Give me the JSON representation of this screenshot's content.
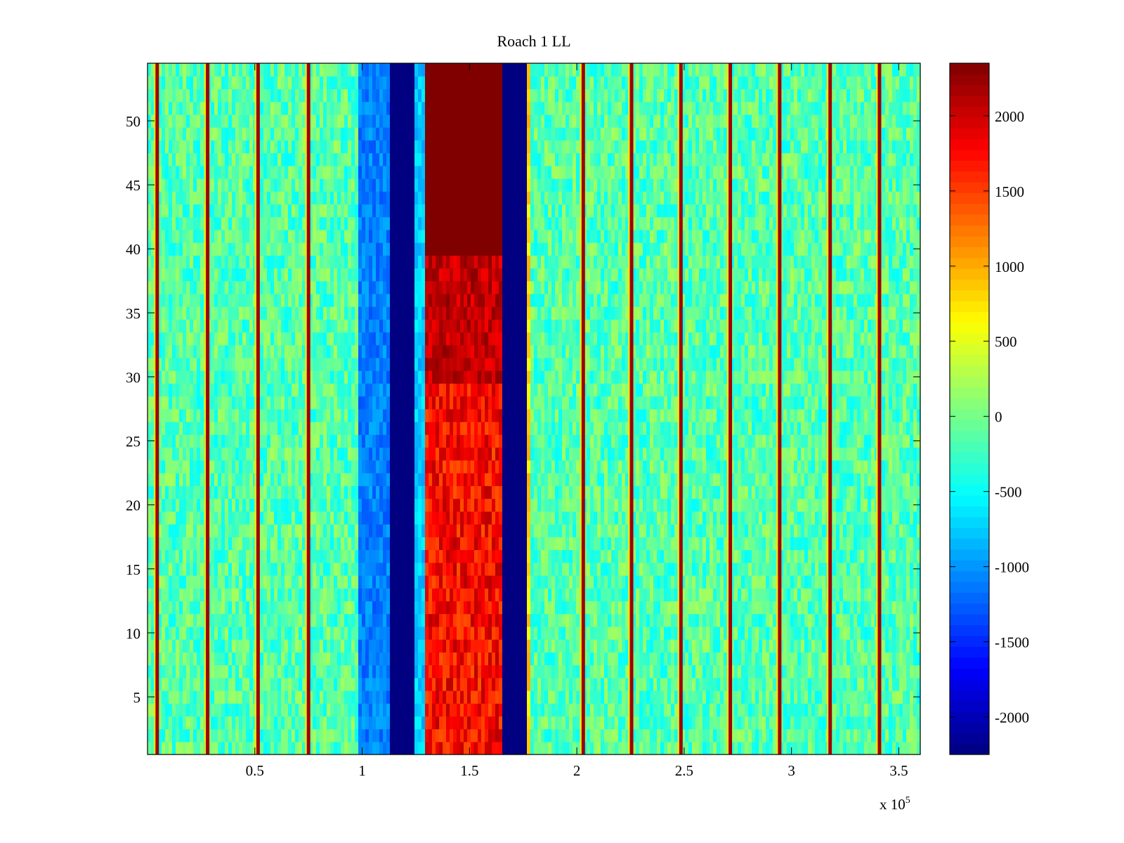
{
  "chart_data": {
    "type": "heatmap",
    "title": "Roach 1 LL",
    "xlabel": "",
    "ylabel": "",
    "x_exponent_label": "x 10",
    "x_exponent_power": "5",
    "xlim": [
      0,
      3.6
    ],
    "ylim": [
      0.5,
      54.5
    ],
    "x_ticks": [
      0.5,
      1,
      1.5,
      2,
      2.5,
      3,
      3.5
    ],
    "x_tick_labels": [
      "0.5",
      "1",
      "1.5",
      "2",
      "2.5",
      "3",
      "3.5"
    ],
    "y_ticks": [
      5,
      10,
      15,
      20,
      25,
      30,
      35,
      40,
      45,
      50
    ],
    "y_tick_labels": [
      "5",
      "10",
      "15",
      "20",
      "25",
      "30",
      "35",
      "40",
      "45",
      "50"
    ],
    "n_rows": 54,
    "colormap": "jet",
    "colorbar": {
      "clim": [
        -2250,
        2350
      ],
      "ticks": [
        -2000,
        -1500,
        -1000,
        -500,
        0,
        500,
        1000,
        1500,
        2000
      ],
      "tick_labels": [
        "-2000",
        "-1500",
        "-1000",
        "-500",
        "0",
        "500",
        "1000",
        "1500",
        "2000"
      ]
    },
    "background_level": -150,
    "noise_amplitude": 380,
    "bands": [
      {
        "x_start": 0.99,
        "x_end": 1.13,
        "value": -1100,
        "description": "light blue band"
      },
      {
        "x_start": 1.13,
        "x_end": 1.25,
        "value": -2250,
        "description": "dark blue band"
      },
      {
        "x_start": 1.25,
        "x_end": 1.29,
        "value": -750,
        "description": "cyan edge"
      },
      {
        "x_start": 1.29,
        "x_end": 1.65,
        "value": 1800,
        "description": "red band, saturated above y=40"
      },
      {
        "x_start": 1.65,
        "x_end": 1.77,
        "value": -2250,
        "description": "dark blue band"
      },
      {
        "x_start": 1.77,
        "x_end": 1.79,
        "value": 800,
        "description": "yellow edge"
      }
    ],
    "spike_lines_x": [
      0.045,
      0.28,
      0.515,
      0.75,
      2.03,
      2.255,
      2.485,
      2.715,
      2.945,
      3.18,
      3.41
    ]
  }
}
